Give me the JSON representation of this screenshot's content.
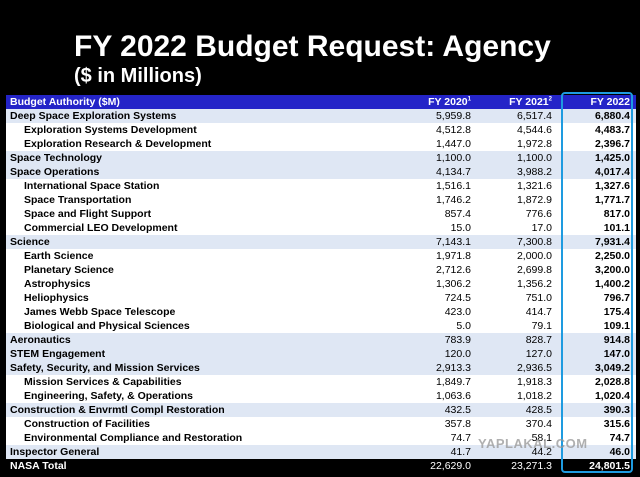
{
  "header": {
    "title": "FY 2022 Budget Request: Agency",
    "subtitle": "($ in Millions)"
  },
  "table": {
    "columns": [
      "Budget Authority ($M)",
      {
        "label": "FY 2020",
        "note": "1"
      },
      {
        "label": "FY 2021",
        "note": "2"
      },
      {
        "label": "FY 2022"
      }
    ],
    "sections": [
      {
        "label": "Deep Space Exploration Systems",
        "values": [
          "5,959.8",
          "6,517.4",
          "6,880.4"
        ],
        "items": [
          {
            "label": "Exploration Systems Development",
            "values": [
              "4,512.8",
              "4,544.6",
              "4,483.7"
            ]
          },
          {
            "label": "Exploration Research & Development",
            "values": [
              "1,447.0",
              "1,972.8",
              "2,396.7"
            ]
          }
        ]
      },
      {
        "label": "Space Technology",
        "values": [
          "1,100.0",
          "1,100.0",
          "1,425.0"
        ],
        "items": []
      },
      {
        "label": "Space Operations",
        "values": [
          "4,134.7",
          "3,988.2",
          "4,017.4"
        ],
        "items": [
          {
            "label": "International Space Station",
            "values": [
              "1,516.1",
              "1,321.6",
              "1,327.6"
            ]
          },
          {
            "label": "Space Transportation",
            "values": [
              "1,746.2",
              "1,872.9",
              "1,771.7"
            ]
          },
          {
            "label": "Space and Flight Support",
            "values": [
              "857.4",
              "776.6",
              "817.0"
            ]
          },
          {
            "label": "Commercial LEO Development",
            "values": [
              "15.0",
              "17.0",
              "101.1"
            ]
          }
        ]
      },
      {
        "label": "Science",
        "values": [
          "7,143.1",
          "7,300.8",
          "7,931.4"
        ],
        "items": [
          {
            "label": "Earth Science",
            "values": [
              "1,971.8",
              "2,000.0",
              "2,250.0"
            ]
          },
          {
            "label": "Planetary Science",
            "values": [
              "2,712.6",
              "2,699.8",
              "3,200.0"
            ]
          },
          {
            "label": "Astrophysics",
            "values": [
              "1,306.2",
              "1,356.2",
              "1,400.2"
            ]
          },
          {
            "label": "Heliophysics",
            "values": [
              "724.5",
              "751.0",
              "796.7"
            ]
          },
          {
            "label": "James Webb Space Telescope",
            "values": [
              "423.0",
              "414.7",
              "175.4"
            ]
          },
          {
            "label": "Biological and Physical Sciences",
            "values": [
              "5.0",
              "79.1",
              "109.1"
            ]
          }
        ]
      },
      {
        "label": "Aeronautics",
        "values": [
          "783.9",
          "828.7",
          "914.8"
        ],
        "items": []
      },
      {
        "label": "STEM Engagement",
        "values": [
          "120.0",
          "127.0",
          "147.0"
        ],
        "items": []
      },
      {
        "label": "Safety, Security, and Mission Services",
        "values": [
          "2,913.3",
          "2,936.5",
          "3,049.2"
        ],
        "items": [
          {
            "label": "Mission Services & Capabilities",
            "values": [
              "1,849.7",
              "1,918.3",
              "2,028.8"
            ]
          },
          {
            "label": "Engineering, Safety, & Operations",
            "values": [
              "1,063.6",
              "1,018.2",
              "1,020.4"
            ]
          }
        ]
      },
      {
        "label": "Construction & Envrmtl Compl Restoration",
        "values": [
          "432.5",
          "428.5",
          "390.3"
        ],
        "items": [
          {
            "label": "Construction of Facilities",
            "values": [
              "357.8",
              "370.4",
              "315.6"
            ]
          },
          {
            "label": "Environmental Compliance and Restoration",
            "values": [
              "74.7",
              "58.1",
              "74.7"
            ]
          }
        ]
      },
      {
        "label": "Inspector General",
        "values": [
          "41.7",
          "44.2",
          "46.0"
        ],
        "items": []
      }
    ],
    "total": {
      "label": "NASA Total",
      "values": [
        "22,629.0",
        "23,271.3",
        "24,801.5"
      ]
    }
  },
  "watermark": "YAPLAKAL.COM"
}
